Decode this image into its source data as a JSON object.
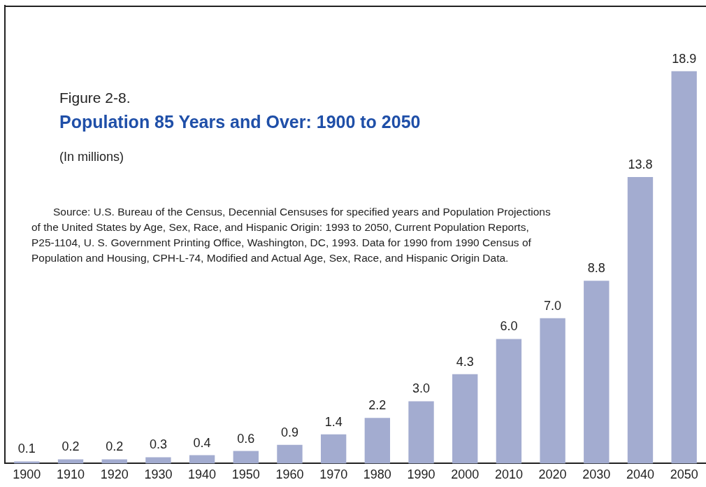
{
  "chart_data": {
    "type": "bar",
    "title": "Figure 2-8.",
    "subtitle": "Population 85 Years and Over:  1900 to 2050",
    "annotations": [
      "(In millions)",
      "Source:  U.S. Bureau of the Census, Decennial Censuses for specified years and Population Projections of the United States by Age, Sex, Race, and Hispanic Origin: 1993 to 2050, Current Population Reports, P25-1104, U. S. Government Printing Office, Washington, DC, 1993.  Data for 1990 from 1990 Census of Population and Housing, CPH-L-74, Modified and Actual Age, Sex, Race, and Hispanic Origin Data."
    ],
    "categories": [
      "1900",
      "1910",
      "1920",
      "1930",
      "1940",
      "1950",
      "1960",
      "1970",
      "1980",
      "1990",
      "2000",
      "2010",
      "2020",
      "2030",
      "2040",
      "2050"
    ],
    "values": [
      0.1,
      0.2,
      0.2,
      0.3,
      0.4,
      0.6,
      0.9,
      1.4,
      2.2,
      3.0,
      4.3,
      6.0,
      7.0,
      8.8,
      13.8,
      18.9
    ],
    "value_labels": [
      "0.1",
      "0.2",
      "0.2",
      "0.3",
      "0.4",
      "0.6",
      "0.9",
      "1.4",
      "2.2",
      "3.0",
      "4.3",
      "6.0",
      "7.0",
      "8.8",
      "13.8",
      "18.9"
    ],
    "color": "#a3acd0",
    "grid": false,
    "legend": false
  }
}
